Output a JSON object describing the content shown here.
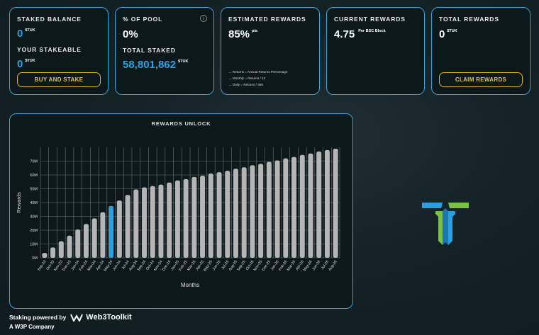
{
  "cards": {
    "staked_balance": {
      "label": "STAKED BALANCE",
      "value": "0",
      "unit": "$TUK"
    },
    "stakeable": {
      "label": "YOUR STAKEABLE",
      "value": "0",
      "unit": "$TUK"
    },
    "buy_button": "BUY AND STAKE",
    "pool": {
      "label": "% OF POOL",
      "value": "0%",
      "info_icon": "i"
    },
    "total_staked": {
      "label": "TOTAL STAKED",
      "value": "58,801,862",
      "unit": "$TUK"
    },
    "estimated": {
      "label": "ESTIMATED REWARDS",
      "value": "85%",
      "unit": "p/a",
      "notes": [
        "→ Returns = Annual Returns Percentage",
        "→ Monthly = Returns / 12",
        "→ Daily = Returns / 365"
      ]
    },
    "current": {
      "label": "CURRENT REWARDS",
      "value": "4.75",
      "unit": "Per BSC Block"
    },
    "total_rewards": {
      "label": "TOTAL REWARDS",
      "value": "0",
      "unit": "$TUK"
    },
    "claim_button": "CLAIM REWARDS"
  },
  "chart_data": {
    "type": "bar",
    "title": "REWARDS UNLOCK",
    "xlabel": "Months",
    "ylabel": "Rewards",
    "yticks": [
      "0M",
      "10M",
      "20M",
      "30M",
      "40M",
      "50M",
      "60M",
      "70M"
    ],
    "ylim": [
      0,
      80
    ],
    "grid": true,
    "categories": [
      "Sep-23",
      "Oct-23",
      "Nov-23",
      "Dec-23",
      "Jan-24",
      "Feb-24",
      "Mar-24",
      "Apr-24",
      "May-24",
      "Jun-24",
      "Jul-24",
      "Aug-24",
      "Sep-24",
      "Oct-24",
      "Nov-24",
      "Dec-24",
      "Jan-25",
      "Feb-25",
      "Mar-25",
      "Apr-25",
      "May-25",
      "Jun-25",
      "Jul-25",
      "Aug-25",
      "Sep-25",
      "Oct-25",
      "Nov-25",
      "Dec-25",
      "Jan-26",
      "Feb-26",
      "Mar-26",
      "Apr-26",
      "May-26",
      "Jun-26",
      "Jul-26",
      "Aug-26"
    ],
    "values": [
      3.5,
      7.5,
      12,
      16,
      20.5,
      24.5,
      28.5,
      33,
      37.5,
      41.5,
      45.5,
      49.5,
      51,
      52,
      53,
      54.5,
      56,
      57,
      58.5,
      59.5,
      61,
      62,
      63,
      64.5,
      65.5,
      67,
      68,
      69.5,
      70.5,
      72,
      73,
      74.5,
      75.5,
      77,
      78,
      79
    ],
    "highlight_index": 8,
    "bar_color": "#b5b5b5",
    "highlight_color": "#2b9fe0"
  },
  "footer": {
    "powered": "Staking powered by",
    "brand": "Web3Toolkit",
    "company": "A W3P Company"
  },
  "colors": {
    "accent": "#3aa3d8",
    "button": "#d9b11f",
    "logo_blue": "#2b9fe0",
    "logo_green": "#7ac143"
  }
}
